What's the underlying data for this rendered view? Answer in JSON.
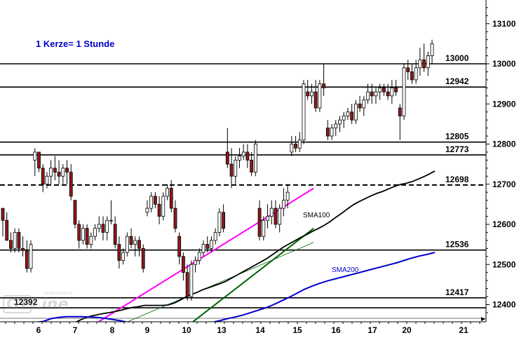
{
  "chart_data": {
    "type": "candlestick",
    "annotation": "1 Kerze= 1 Stunde",
    "x_tick_labels": [
      "6",
      "7",
      "8",
      "9",
      "10",
      "13",
      "14",
      "15",
      "16",
      "17",
      "20",
      "21"
    ],
    "y_tick_labels": [
      "13100",
      "13000",
      "12900",
      "12800",
      "12700",
      "12600",
      "12500",
      "12400"
    ],
    "ylim": [
      12355,
      13175
    ],
    "grid": false,
    "candle_colors": {
      "up": "#ffffff",
      "down": "#8b1a1a",
      "outline": "#000000"
    },
    "candles": [
      [
        12640,
        12640,
        12570,
        12610
      ],
      [
        12610,
        12630,
        12560,
        12560
      ],
      [
        12560,
        12580,
        12530,
        12540
      ],
      [
        12540,
        12590,
        12530,
        12580
      ],
      [
        12580,
        12590,
        12530,
        12540
      ],
      [
        12540,
        12570,
        12520,
        12535
      ],
      [
        12535,
        12560,
        12480,
        12490
      ],
      [
        12490,
        12560,
        12480,
        12550
      ],
      [
        12760,
        12790,
        12720,
        12780
      ],
      [
        12780,
        12780,
        12730,
        12740
      ],
      [
        12740,
        12750,
        12680,
        12700
      ],
      [
        12700,
        12730,
        12690,
        12720
      ],
      [
        12720,
        12760,
        12700,
        12740
      ],
      [
        12740,
        12770,
        12710,
        12730
      ],
      [
        12730,
        12760,
        12700,
        12720
      ],
      [
        12720,
        12750,
        12700,
        12740
      ],
      [
        12740,
        12760,
        12700,
        12730
      ],
      [
        12730,
        12750,
        12660,
        12670
      ],
      [
        12660,
        12660,
        12590,
        12600
      ],
      [
        12600,
        12610,
        12540,
        12560
      ],
      [
        12560,
        12600,
        12550,
        12590
      ],
      [
        12590,
        12600,
        12540,
        12550
      ],
      [
        12550,
        12580,
        12540,
        12570
      ],
      [
        12570,
        12600,
        12560,
        12590
      ],
      [
        12590,
        12620,
        12580,
        12600
      ],
      [
        12600,
        12620,
        12560,
        12580
      ],
      [
        12580,
        12620,
        12560,
        12610
      ],
      [
        12610,
        12660,
        12600,
        12610
      ],
      [
        12600,
        12620,
        12540,
        12550
      ],
      [
        12550,
        12570,
        12490,
        12510
      ],
      [
        12510,
        12540,
        12500,
        12530
      ],
      [
        12530,
        12580,
        12520,
        12570
      ],
      [
        12570,
        12590,
        12540,
        12550
      ],
      [
        12550,
        12570,
        12520,
        12560
      ],
      [
        12560,
        12570,
        12520,
        12540
      ],
      [
        12540,
        12550,
        12480,
        12490
      ],
      [
        12630,
        12660,
        12620,
        12640
      ],
      [
        12640,
        12680,
        12630,
        12670
      ],
      [
        12670,
        12680,
        12640,
        12650
      ],
      [
        12650,
        12670,
        12600,
        12620
      ],
      [
        12620,
        12680,
        12610,
        12670
      ],
      [
        12670,
        12700,
        12660,
        12690
      ],
      [
        12690,
        12710,
        12630,
        12640
      ],
      [
        12640,
        12660,
        12580,
        12590
      ],
      [
        12570,
        12580,
        12500,
        12520
      ],
      [
        12520,
        12530,
        12460,
        12480
      ],
      [
        12480,
        12500,
        12410,
        12420
      ],
      [
        12420,
        12510,
        12410,
        12500
      ],
      [
        12500,
        12520,
        12480,
        12510
      ],
      [
        12510,
        12540,
        12500,
        12530
      ],
      [
        12530,
        12560,
        12520,
        12550
      ],
      [
        12550,
        12570,
        12530,
        12540
      ],
      [
        12540,
        12570,
        12530,
        12560
      ],
      [
        12560,
        12590,
        12550,
        12580
      ],
      [
        12580,
        12640,
        12570,
        12630
      ],
      [
        12630,
        12650,
        12580,
        12590
      ],
      [
        12780,
        12840,
        12740,
        12750
      ],
      [
        12750,
        12790,
        12690,
        12720
      ],
      [
        12720,
        12770,
        12700,
        12760
      ],
      [
        12760,
        12790,
        12740,
        12770
      ],
      [
        12770,
        12800,
        12760,
        12780
      ],
      [
        12780,
        12800,
        12740,
        12760
      ],
      [
        12760,
        12780,
        12720,
        12730
      ],
      [
        12730,
        12810,
        12720,
        12800
      ],
      [
        12640,
        12660,
        12560,
        12570
      ],
      [
        12570,
        12620,
        12560,
        12610
      ],
      [
        12610,
        12650,
        12590,
        12620
      ],
      [
        12620,
        12660,
        12600,
        12640
      ],
      [
        12640,
        12660,
        12590,
        12600
      ],
      [
        12600,
        12650,
        12580,
        12640
      ],
      [
        12640,
        12690,
        12620,
        12660
      ],
      [
        12660,
        12700,
        12640,
        12680
      ],
      [
        12780,
        12820,
        12770,
        12800
      ],
      [
        12800,
        12820,
        12780,
        12790
      ],
      [
        12790,
        12830,
        12780,
        12810
      ],
      [
        12810,
        12960,
        12800,
        12950
      ],
      [
        12930,
        12960,
        12910,
        12920
      ],
      [
        12920,
        12950,
        12900,
        12930
      ],
      [
        12930,
        12960,
        12880,
        12890
      ],
      [
        12890,
        12960,
        12880,
        12950
      ],
      [
        12950,
        13000,
        12920,
        12940
      ],
      [
        12840,
        12860,
        12810,
        12820
      ],
      [
        12820,
        12850,
        12810,
        12840
      ],
      [
        12840,
        12860,
        12820,
        12850
      ],
      [
        12850,
        12870,
        12830,
        12860
      ],
      [
        12860,
        12880,
        12840,
        12870
      ],
      [
        12870,
        12890,
        12860,
        12880
      ],
      [
        12880,
        12900,
        12850,
        12860
      ],
      [
        12860,
        12910,
        12850,
        12900
      ],
      [
        12900,
        12920,
        12880,
        12890
      ],
      [
        12890,
        12920,
        12870,
        12910
      ],
      [
        12910,
        12950,
        12900,
        12930
      ],
      [
        12930,
        12950,
        12900,
        12920
      ],
      [
        12920,
        12940,
        12900,
        12930
      ],
      [
        12930,
        12950,
        12910,
        12940
      ],
      [
        12940,
        12950,
        12920,
        12930
      ],
      [
        12930,
        12950,
        12910,
        12920
      ],
      [
        12920,
        12960,
        12900,
        12940
      ],
      [
        12940,
        12960,
        12920,
        12930
      ],
      [
        12890,
        12900,
        12810,
        12870
      ],
      [
        12870,
        13000,
        12860,
        12990
      ],
      [
        12990,
        13010,
        12960,
        12980
      ],
      [
        12980,
        13000,
        12950,
        12960
      ],
      [
        12960,
        13010,
        12950,
        12990
      ],
      [
        12990,
        13040,
        12970,
        13010
      ],
      [
        13010,
        13050,
        12980,
        12990
      ],
      [
        12990,
        13030,
        12970,
        13020
      ],
      [
        13020,
        13060,
        13000,
        13050
      ]
    ],
    "horizontal_levels": [
      {
        "value": 13000,
        "label": "13000",
        "style": "solid",
        "color": "#000000"
      },
      {
        "value": 12942,
        "label": "12942",
        "style": "solid",
        "color": "#000000"
      },
      {
        "value": 12805,
        "label": "12805",
        "style": "solid",
        "color": "#000000"
      },
      {
        "value": 12773,
        "label": "12773",
        "style": "solid",
        "color": "#000000"
      },
      {
        "value": 12698,
        "label": "12698",
        "style": "dashed",
        "color": "#000000"
      },
      {
        "value": 12536,
        "label": "12536",
        "style": "solid",
        "color": "#000000"
      },
      {
        "value": 12417,
        "label": "12417",
        "style": "solid",
        "color": "#000000"
      },
      {
        "value": 12392,
        "label": "12392",
        "style": "solid",
        "color": "#000000"
      }
    ],
    "moving_averages": [
      {
        "name": "SMA100",
        "color": "#000000",
        "values": [
          12340,
          12345,
          12355,
          12362,
          12368,
          12372,
          12375,
          12378,
          12380,
          12383,
          12386,
          12390,
          12393,
          12395,
          12398,
          12398,
          12398,
          12398,
          12399,
          12403,
          12410,
          12418,
          12425,
          12430,
          12437,
          12442,
          12447,
          12452,
          12458,
          12466,
          12474,
          12482,
          12490,
          12498,
          12506,
          12514,
          12524,
          12534,
          12544,
          12552,
          12560,
          12568,
          12575,
          12583,
          12590,
          12598,
          12607,
          12618,
          12628,
          12639,
          12649,
          12657,
          12664,
          12671,
          12677,
          12682,
          12688,
          12694,
          12699,
          12702,
          12706,
          12712,
          12718,
          12725,
          12733
        ]
      },
      {
        "name": "SMA200",
        "color": "#0000cc",
        "values": [
          12355,
          12356,
          12358,
          12365,
          12368,
          12370,
          12370,
          12370,
          12369,
          12368,
          12366,
          12363,
          12360,
          12356,
          12352,
          12348,
          12346,
          12345,
          12344,
          12344,
          12345,
          12347,
          12349,
          12352,
          12356,
          12360,
          12365,
          12369,
          12374,
          12380,
          12386,
          12392,
          12400,
          12409,
          12418,
          12428,
          12438,
          12446,
          12453,
          12459,
          12464,
          12469,
          12474,
          12479,
          12484,
          12489,
          12494,
          12499,
          12504,
          12510,
          12516,
          12521,
          12525,
          12530
        ]
      }
    ],
    "trend_lines": [
      {
        "color": "#ff00ff",
        "from": [
          19.5,
          12330
        ],
        "to": [
          77.5,
          12690
        ]
      },
      {
        "color": "#006400",
        "from": [
          40.0,
          12300
        ],
        "to": [
          77.5,
          12590
        ]
      },
      {
        "color": "#006400",
        "from": [
          20.0,
          12310
        ],
        "to": [
          77.5,
          12555
        ]
      }
    ]
  }
}
